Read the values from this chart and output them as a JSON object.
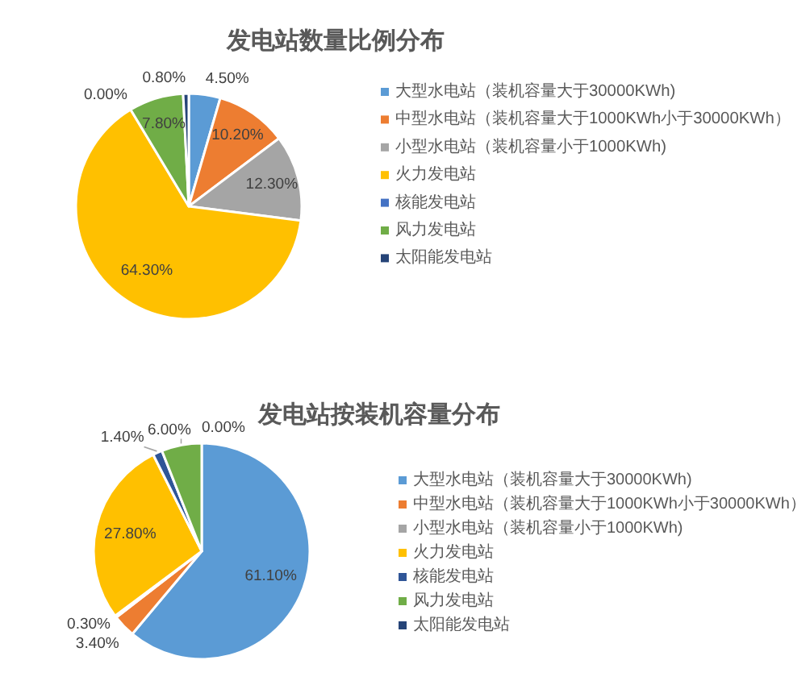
{
  "chart_data": [
    {
      "type": "pie",
      "title": "发电站数量比例分布",
      "categories": [
        "大型水电站（装机容量大于30000KWh)",
        "中型水电站（装机容量大于1000KWh小于30000KWh）",
        "小型水电站（装机容量小于1000KWh)",
        "火力发电站",
        "核能发电站",
        "风力发电站",
        "太阳能发电站"
      ],
      "values": [
        4.5,
        10.2,
        12.3,
        64.3,
        0,
        7.8,
        0.8
      ],
      "value_labels": [
        "4.50%",
        "10.20%",
        "12.30%",
        "64.30%",
        "0.00%",
        "7.80%",
        "0.80%"
      ],
      "colors": [
        "#5b9bd5",
        "#ed7d31",
        "#a5a5a5",
        "#ffc000",
        "#4472c4",
        "#70ad47",
        "#264478"
      ],
      "legend": "right"
    },
    {
      "type": "pie",
      "title": "发电站按装机容量分布",
      "categories": [
        "大型水电站（装机容量大于30000KWh)",
        "中型水电站（装机容量大于1000KWh小于30000KWh）",
        "小型水电站（装机容量小于1000KWh)",
        "火力发电站",
        "核能发电站",
        "风力发电站",
        "太阳能发电站"
      ],
      "values": [
        61.1,
        3.4,
        0.3,
        27.8,
        1.4,
        6.0,
        0
      ],
      "value_labels": [
        "61.10%",
        "3.40%",
        "0.30%",
        "27.80%",
        "1.40%",
        "6.00%",
        "0.00%"
      ],
      "colors": [
        "#5b9bd5",
        "#ed7d31",
        "#a5a5a5",
        "#ffc000",
        "#2f5597",
        "#70ad47",
        "#264478"
      ],
      "legend": "right"
    }
  ]
}
